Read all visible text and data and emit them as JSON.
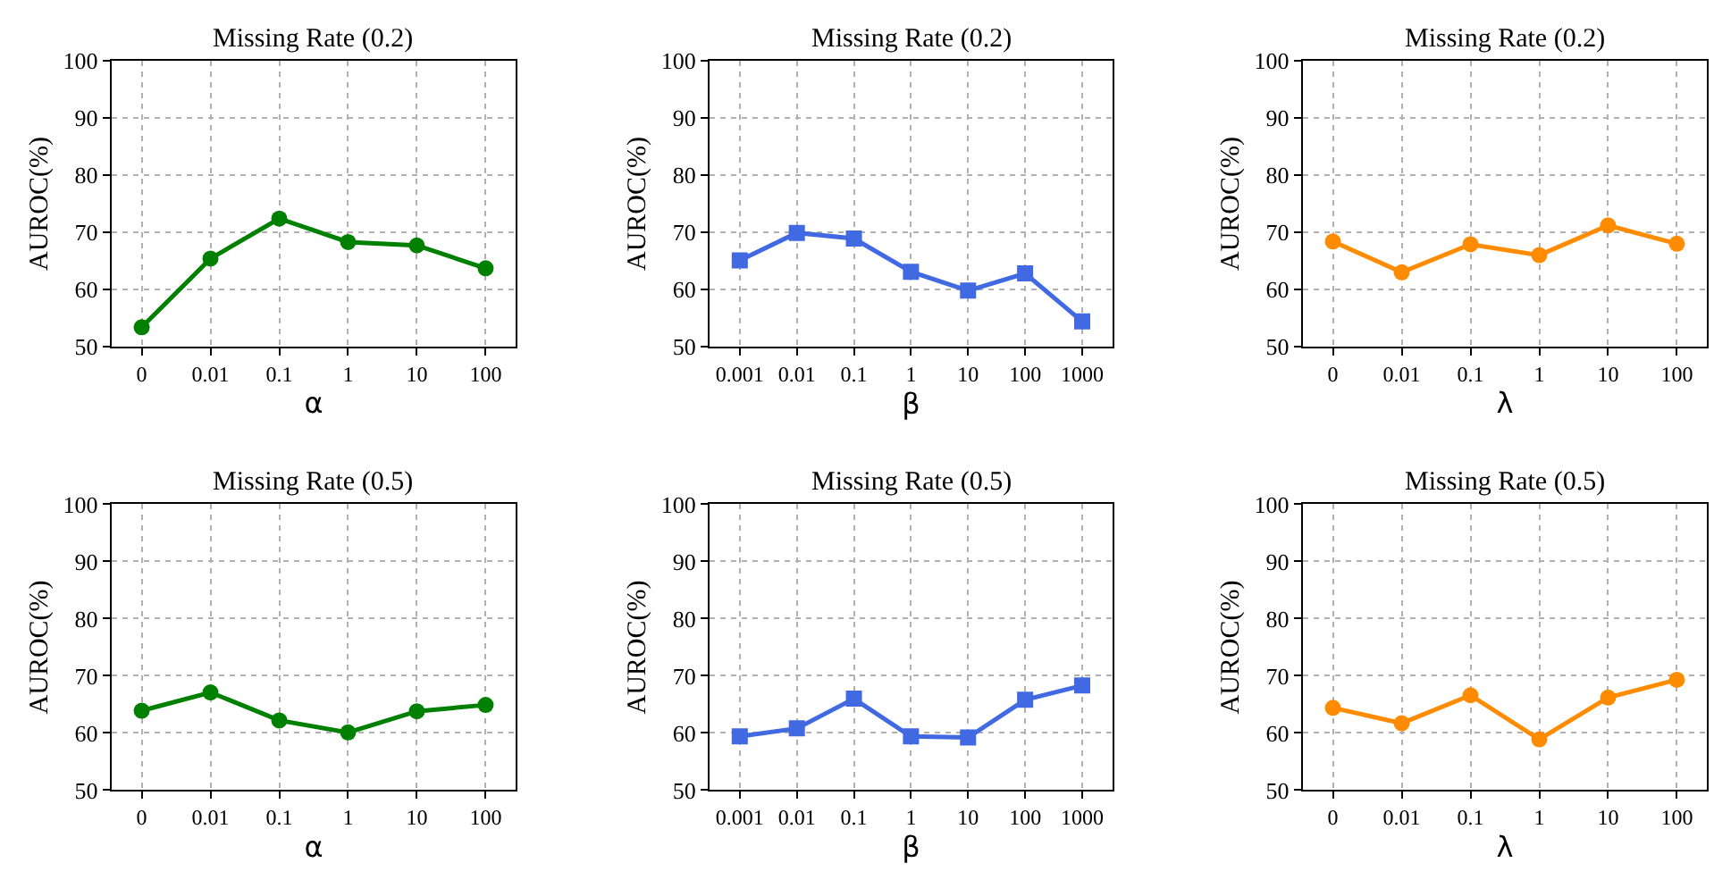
{
  "chart_data": [
    {
      "type": "line",
      "title": "Missing Rate (0.2)",
      "xlabel": "α",
      "ylabel": "AUROC(%)",
      "categories": [
        "0",
        "0.01",
        "0.1",
        "1",
        "10",
        "100"
      ],
      "series": [
        {
          "color": "#008000",
          "values": [
            53.4,
            65.4,
            72.4,
            68.3,
            67.7,
            63.7
          ]
        }
      ],
      "ylim": [
        50,
        100
      ],
      "yticks": [
        50,
        60,
        70,
        80,
        90,
        100
      ],
      "grid": true,
      "marker": "circle"
    },
    {
      "type": "line",
      "title": "Missing Rate (0.2)",
      "xlabel": "β",
      "ylabel": "AUROC(%)",
      "categories": [
        "0.001",
        "0.01",
        "0.1",
        "1",
        "10",
        "100",
        "1000"
      ],
      "series": [
        {
          "color": "#4169e1",
          "values": [
            65.1,
            69.9,
            68.9,
            63.1,
            59.8,
            62.8,
            54.4
          ]
        }
      ],
      "ylim": [
        50,
        100
      ],
      "yticks": [
        50,
        60,
        70,
        80,
        90,
        100
      ],
      "grid": true,
      "marker": "square"
    },
    {
      "type": "line",
      "title": "Missing Rate (0.2)",
      "xlabel": "λ",
      "ylabel": "AUROC(%)",
      "categories": [
        "0",
        "0.01",
        "0.1",
        "1",
        "10",
        "100"
      ],
      "series": [
        {
          "color": "#ff8c00",
          "values": [
            68.4,
            63.0,
            67.9,
            66.0,
            71.2,
            68.0
          ]
        }
      ],
      "ylim": [
        50,
        100
      ],
      "yticks": [
        50,
        60,
        70,
        80,
        90,
        100
      ],
      "grid": true,
      "marker": "circle"
    },
    {
      "type": "line",
      "title": "Missing Rate (0.5)",
      "xlabel": "α",
      "ylabel": "AUROC(%)",
      "categories": [
        "0",
        "0.01",
        "0.1",
        "1",
        "10",
        "100"
      ],
      "series": [
        {
          "color": "#008000",
          "values": [
            63.9,
            67.1,
            62.2,
            60.1,
            63.8,
            64.9
          ]
        }
      ],
      "ylim": [
        50,
        100
      ],
      "yticks": [
        50,
        60,
        70,
        80,
        90,
        100
      ],
      "grid": true,
      "marker": "circle"
    },
    {
      "type": "line",
      "title": "Missing Rate (0.5)",
      "xlabel": "β",
      "ylabel": "AUROC(%)",
      "categories": [
        "0.001",
        "0.01",
        "0.1",
        "1",
        "10",
        "100",
        "1000"
      ],
      "series": [
        {
          "color": "#4169e1",
          "values": [
            59.4,
            60.8,
            66.0,
            59.4,
            59.2,
            65.8,
            68.3
          ]
        }
      ],
      "ylim": [
        50,
        100
      ],
      "yticks": [
        50,
        60,
        70,
        80,
        90,
        100
      ],
      "grid": true,
      "marker": "square"
    },
    {
      "type": "line",
      "title": "Missing Rate (0.5)",
      "xlabel": "λ",
      "ylabel": "AUROC(%)",
      "categories": [
        "0",
        "0.01",
        "0.1",
        "1",
        "10",
        "100"
      ],
      "series": [
        {
          "color": "#ff8c00",
          "values": [
            64.4,
            61.7,
            66.6,
            58.9,
            66.2,
            69.3
          ]
        }
      ],
      "ylim": [
        50,
        100
      ],
      "yticks": [
        50,
        60,
        70,
        80,
        90,
        100
      ],
      "grid": true,
      "marker": "circle"
    }
  ]
}
